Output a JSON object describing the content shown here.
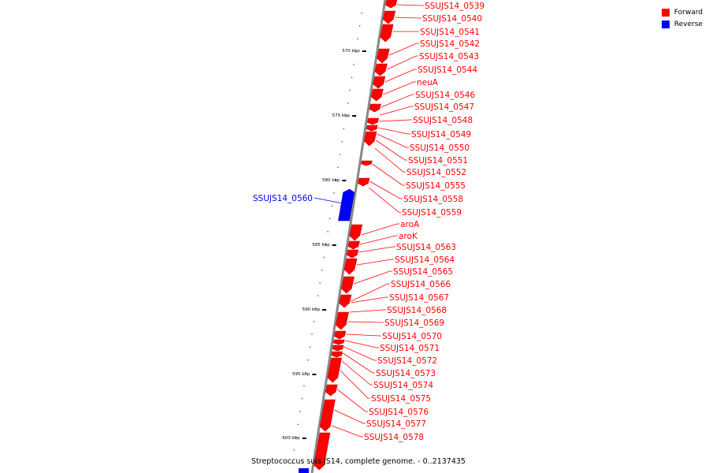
{
  "title": "Streptococcus suis JS14, complete genome. - 0..2137435",
  "colors": {
    "forward": "#ff0000",
    "reverse": "#0000ff",
    "backbone": "#888888"
  },
  "legend": [
    {
      "label": "Forward",
      "color": "#ff0000"
    },
    {
      "label": "Reverse",
      "color": "#0000ff"
    }
  ],
  "ticks": [
    "570 kbp",
    "575 kbp",
    "580 kbp",
    "585 kbp",
    "590 kbp",
    "595 kbp",
    "600 kbp"
  ],
  "forward_labels": [
    "SSUJS14_0539",
    "SSUJS14_0540",
    "SSUJS14_0541",
    "SSUJS14_0542",
    "SSUJS14_0543",
    "SSUJS14_0544",
    "neuA",
    "SSUJS14_0546",
    "SSUJS14_0547",
    "SSUJS14_0548",
    "SSUJS14_0549",
    "SSUJS14_0550",
    "SSUJS14_0551",
    "SSUJS14_0552",
    "SSUJS14_0555",
    "SSUJS14_0558",
    "SSUJS14_0559",
    "aroA",
    "aroK",
    "SSUJS14_0563",
    "SSUJS14_0564",
    "SSUJS14_0565",
    "SSUJS14_0566",
    "SSUJS14_0567",
    "SSUJS14_0568",
    "SSUJS14_0569",
    "SSUJS14_0570",
    "SSUJS14_0571",
    "SSUJS14_0572",
    "SSUJS14_0573",
    "SSUJS14_0574",
    "SSUJS14_0575",
    "SSUJS14_0576",
    "SSUJS14_0577",
    "SSUJS14_0578"
  ],
  "reverse_labels": [
    "SSUJS14_0560"
  ]
}
